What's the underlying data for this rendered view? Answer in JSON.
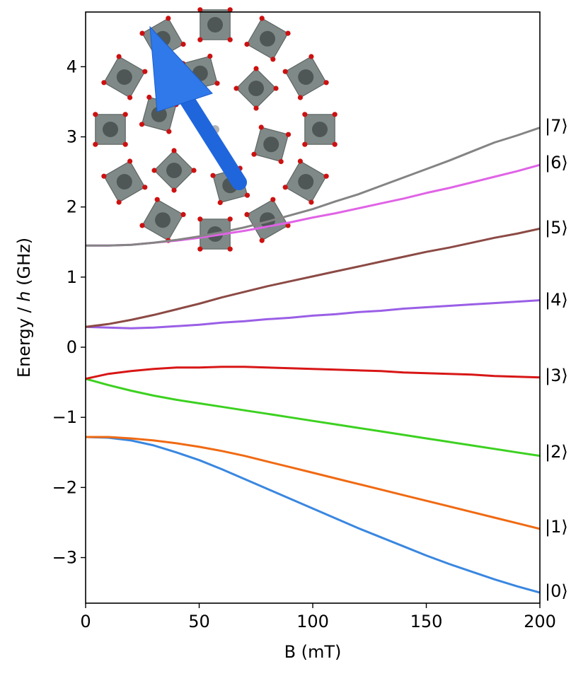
{
  "chart_data": {
    "type": "line",
    "xlabel": "B (mT)",
    "ylabel_parts": [
      "Energy / ",
      "h",
      " (GHz)"
    ],
    "xlim": [
      0,
      200
    ],
    "ylim": [
      -3.65,
      4.78
    ],
    "xticks": [
      0,
      50,
      100,
      150,
      200
    ],
    "yticks": [
      -3,
      -2,
      -1,
      0,
      1,
      2,
      3,
      4
    ],
    "grid": false,
    "x": [
      0,
      10,
      20,
      30,
      40,
      50,
      60,
      70,
      80,
      90,
      100,
      110,
      120,
      130,
      140,
      150,
      160,
      170,
      180,
      190,
      200
    ],
    "series": [
      {
        "name": "|0⟩",
        "color": "#3a87e0",
        "values": [
          -1.28,
          -1.29,
          -1.33,
          -1.4,
          -1.5,
          -1.61,
          -1.74,
          -1.88,
          -2.02,
          -2.16,
          -2.3,
          -2.44,
          -2.58,
          -2.71,
          -2.84,
          -2.97,
          -3.09,
          -3.2,
          -3.31,
          -3.41,
          -3.5
        ]
      },
      {
        "name": "|1⟩",
        "color": "#f06a13",
        "values": [
          -1.28,
          -1.28,
          -1.3,
          -1.33,
          -1.37,
          -1.42,
          -1.48,
          -1.55,
          -1.63,
          -1.71,
          -1.79,
          -1.87,
          -1.95,
          -2.03,
          -2.11,
          -2.19,
          -2.27,
          -2.35,
          -2.43,
          -2.51,
          -2.59
        ]
      },
      {
        "name": "|2⟩",
        "color": "#3cd120",
        "values": [
          -0.45,
          -0.54,
          -0.62,
          -0.69,
          -0.75,
          -0.8,
          -0.85,
          -0.9,
          -0.95,
          -1.0,
          -1.05,
          -1.1,
          -1.15,
          -1.2,
          -1.25,
          -1.3,
          -1.35,
          -1.4,
          -1.45,
          -1.5,
          -1.55
        ]
      },
      {
        "name": "|3⟩",
        "color": "#d81616",
        "values": [
          -0.45,
          -0.38,
          -0.34,
          -0.31,
          -0.29,
          -0.29,
          -0.28,
          -0.28,
          -0.29,
          -0.3,
          -0.31,
          -0.32,
          -0.33,
          -0.34,
          -0.36,
          -0.37,
          -0.38,
          -0.39,
          -0.41,
          -0.42,
          -0.43
        ]
      },
      {
        "name": "|4⟩",
        "color": "#9a5fe6",
        "values": [
          0.29,
          0.28,
          0.27,
          0.28,
          0.3,
          0.32,
          0.35,
          0.37,
          0.4,
          0.42,
          0.45,
          0.47,
          0.5,
          0.52,
          0.55,
          0.57,
          0.59,
          0.61,
          0.63,
          0.65,
          0.67
        ]
      },
      {
        "name": "|5⟩",
        "color": "#8c4a45",
        "values": [
          0.29,
          0.33,
          0.39,
          0.46,
          0.54,
          0.62,
          0.71,
          0.79,
          0.87,
          0.94,
          1.01,
          1.08,
          1.15,
          1.22,
          1.29,
          1.36,
          1.42,
          1.49,
          1.56,
          1.62,
          1.69
        ]
      },
      {
        "name": "|6⟩",
        "color": "#e063e6",
        "values": [
          1.45,
          1.45,
          1.46,
          1.49,
          1.52,
          1.56,
          1.61,
          1.66,
          1.72,
          1.78,
          1.85,
          1.91,
          1.98,
          2.05,
          2.12,
          2.2,
          2.27,
          2.35,
          2.43,
          2.51,
          2.6
        ]
      },
      {
        "name": "|7⟩",
        "color": "#848484",
        "values": [
          1.45,
          1.45,
          1.46,
          1.49,
          1.53,
          1.58,
          1.64,
          1.71,
          1.79,
          1.88,
          1.97,
          2.08,
          2.18,
          2.3,
          2.42,
          2.54,
          2.66,
          2.79,
          2.92,
          3.02,
          3.13
        ]
      }
    ]
  }
}
